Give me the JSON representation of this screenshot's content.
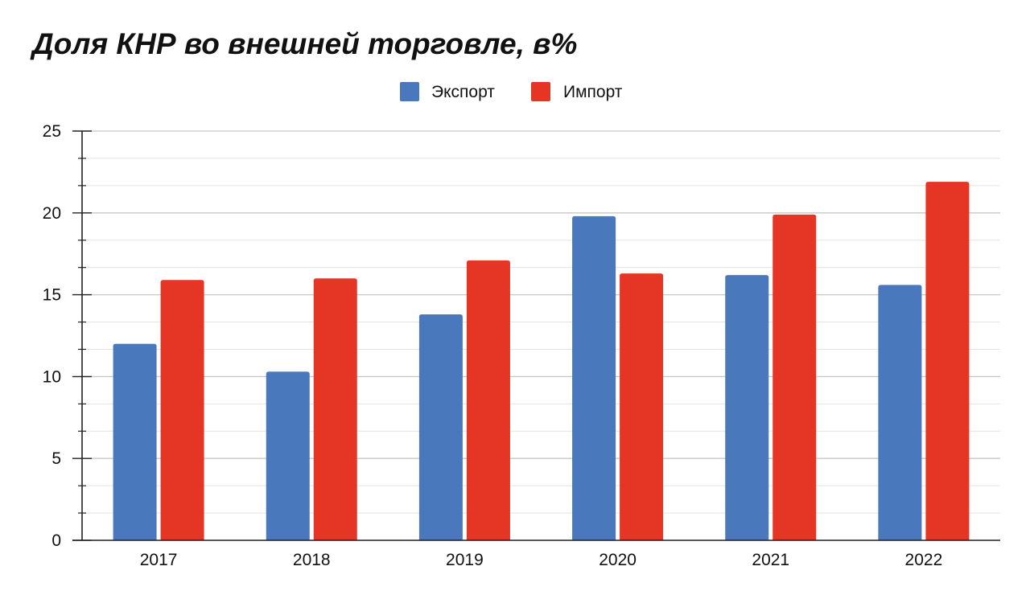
{
  "chart_data": {
    "type": "bar",
    "title": "Доля КНР во внешней торговле, в%",
    "categories": [
      "2017",
      "2018",
      "2019",
      "2020",
      "2021",
      "2022"
    ],
    "series": [
      {
        "name": "Экспорт",
        "color": "#4a78bd",
        "values": [
          12.0,
          10.3,
          13.8,
          19.8,
          16.2,
          15.6
        ]
      },
      {
        "name": "Импорт",
        "color": "#e53525",
        "values": [
          15.9,
          16.0,
          17.1,
          16.3,
          19.9,
          21.9
        ]
      }
    ],
    "ylim": [
      0,
      25
    ],
    "yticks": [
      0,
      5,
      10,
      15,
      20,
      25
    ],
    "grid": true,
    "legend_position": "top-center"
  }
}
